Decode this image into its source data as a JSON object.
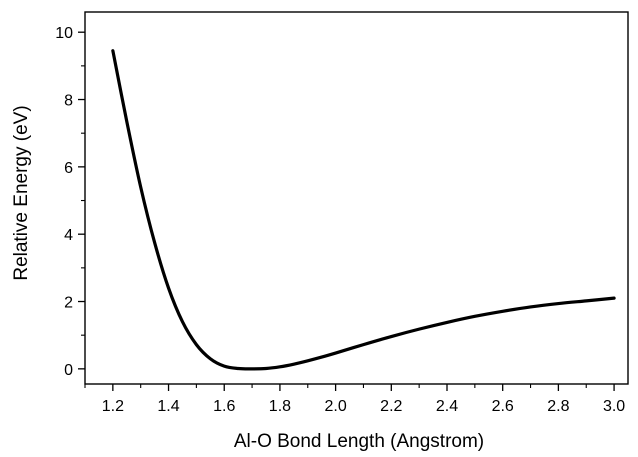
{
  "colors": {
    "background": "#ffffff",
    "axis": "#000000",
    "curve": "#000000"
  },
  "chart_data": {
    "type": "line",
    "title": "",
    "xlabel": "Al-O Bond Length (Angstrom)",
    "ylabel": "Relative Energy (eV)",
    "xlim": [
      1.1,
      3.05
    ],
    "ylim": [
      -0.45,
      10.6
    ],
    "grid": false,
    "legend": "none",
    "x_ticks": [
      1.2,
      1.4,
      1.6,
      1.8,
      2.0,
      2.2,
      2.4,
      2.6,
      2.8,
      3.0
    ],
    "x_tick_labels": [
      "1.2",
      "1.4",
      "1.6",
      "1.8",
      "2.0",
      "2.2",
      "2.4",
      "2.6",
      "2.8",
      "3.0"
    ],
    "y_ticks": [
      0,
      2,
      4,
      6,
      8,
      10
    ],
    "y_tick_labels": [
      "0",
      "2",
      "4",
      "6",
      "8",
      "10"
    ],
    "series": [
      {
        "x": [
          1.2,
          1.25,
          1.3,
          1.35,
          1.4,
          1.45,
          1.5,
          1.55,
          1.6,
          1.65,
          1.7,
          1.75,
          1.8,
          1.85,
          1.9,
          1.95,
          2.0,
          2.1,
          2.2,
          2.3,
          2.4,
          2.5,
          2.6,
          2.7,
          2.8,
          2.9,
          3.0
        ],
        "y": [
          9.45,
          7.35,
          5.4,
          3.75,
          2.4,
          1.4,
          0.72,
          0.3,
          0.08,
          0.01,
          0.0,
          0.01,
          0.06,
          0.14,
          0.24,
          0.35,
          0.47,
          0.72,
          0.96,
          1.18,
          1.38,
          1.56,
          1.71,
          1.84,
          1.94,
          2.02,
          2.1
        ]
      }
    ]
  }
}
